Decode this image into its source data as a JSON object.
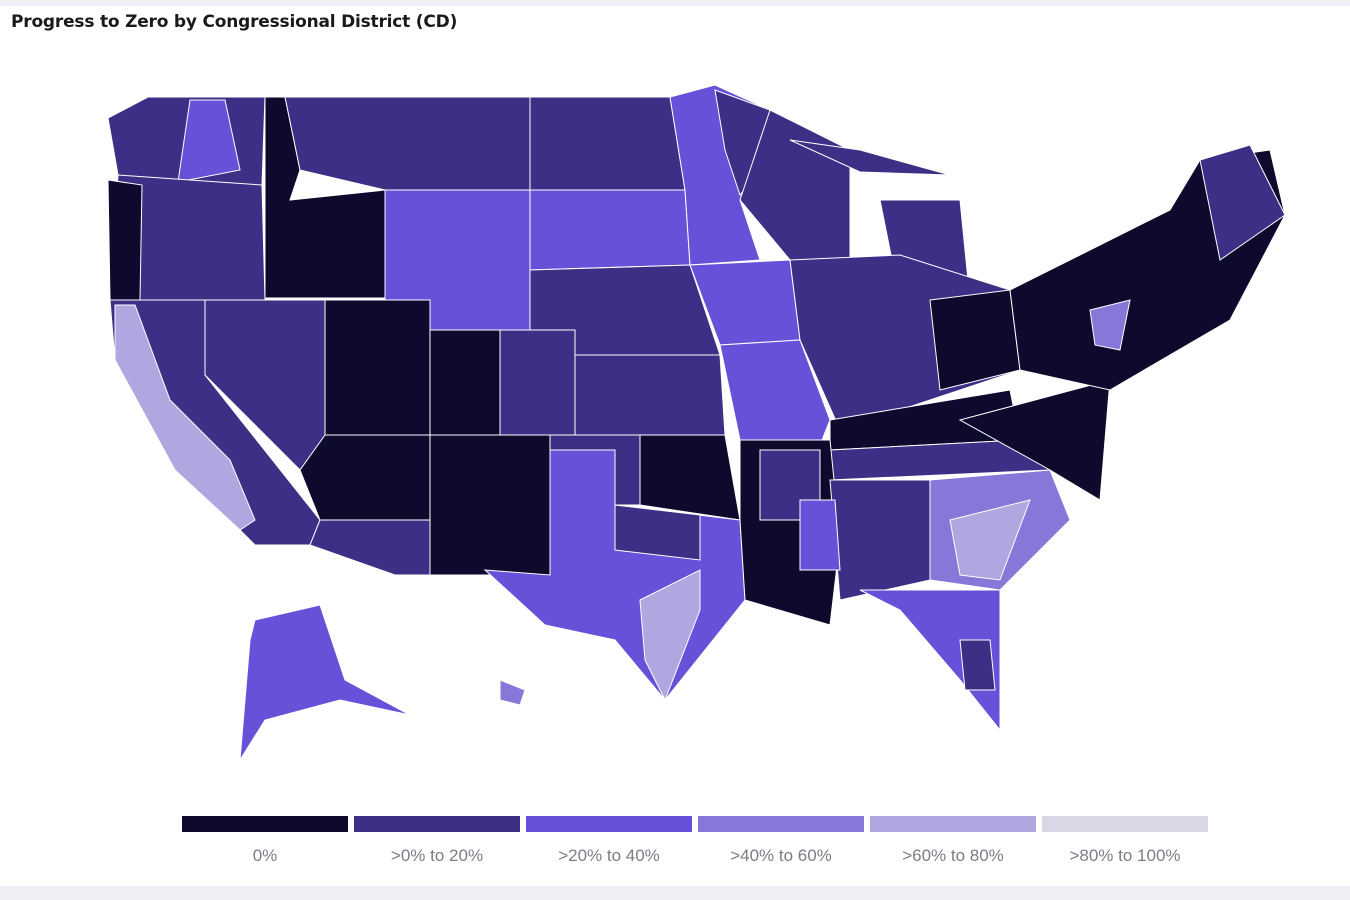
{
  "title": "Progress to Zero by Congressional District (CD)",
  "legend": [
    {
      "label": "0%",
      "color": "#0d0a2e"
    },
    {
      "label": ">0% to 20%",
      "color": "#3d2f86"
    },
    {
      "label": ">20% to 40%",
      "color": "#6651d8"
    },
    {
      "label": ">40% to 60%",
      "color": "#8677d9"
    },
    {
      "label": ">60% to 80%",
      "color": "#b0a6e0"
    },
    {
      "label": ">80% to 100%",
      "color": "#d8d8e6"
    }
  ]
}
